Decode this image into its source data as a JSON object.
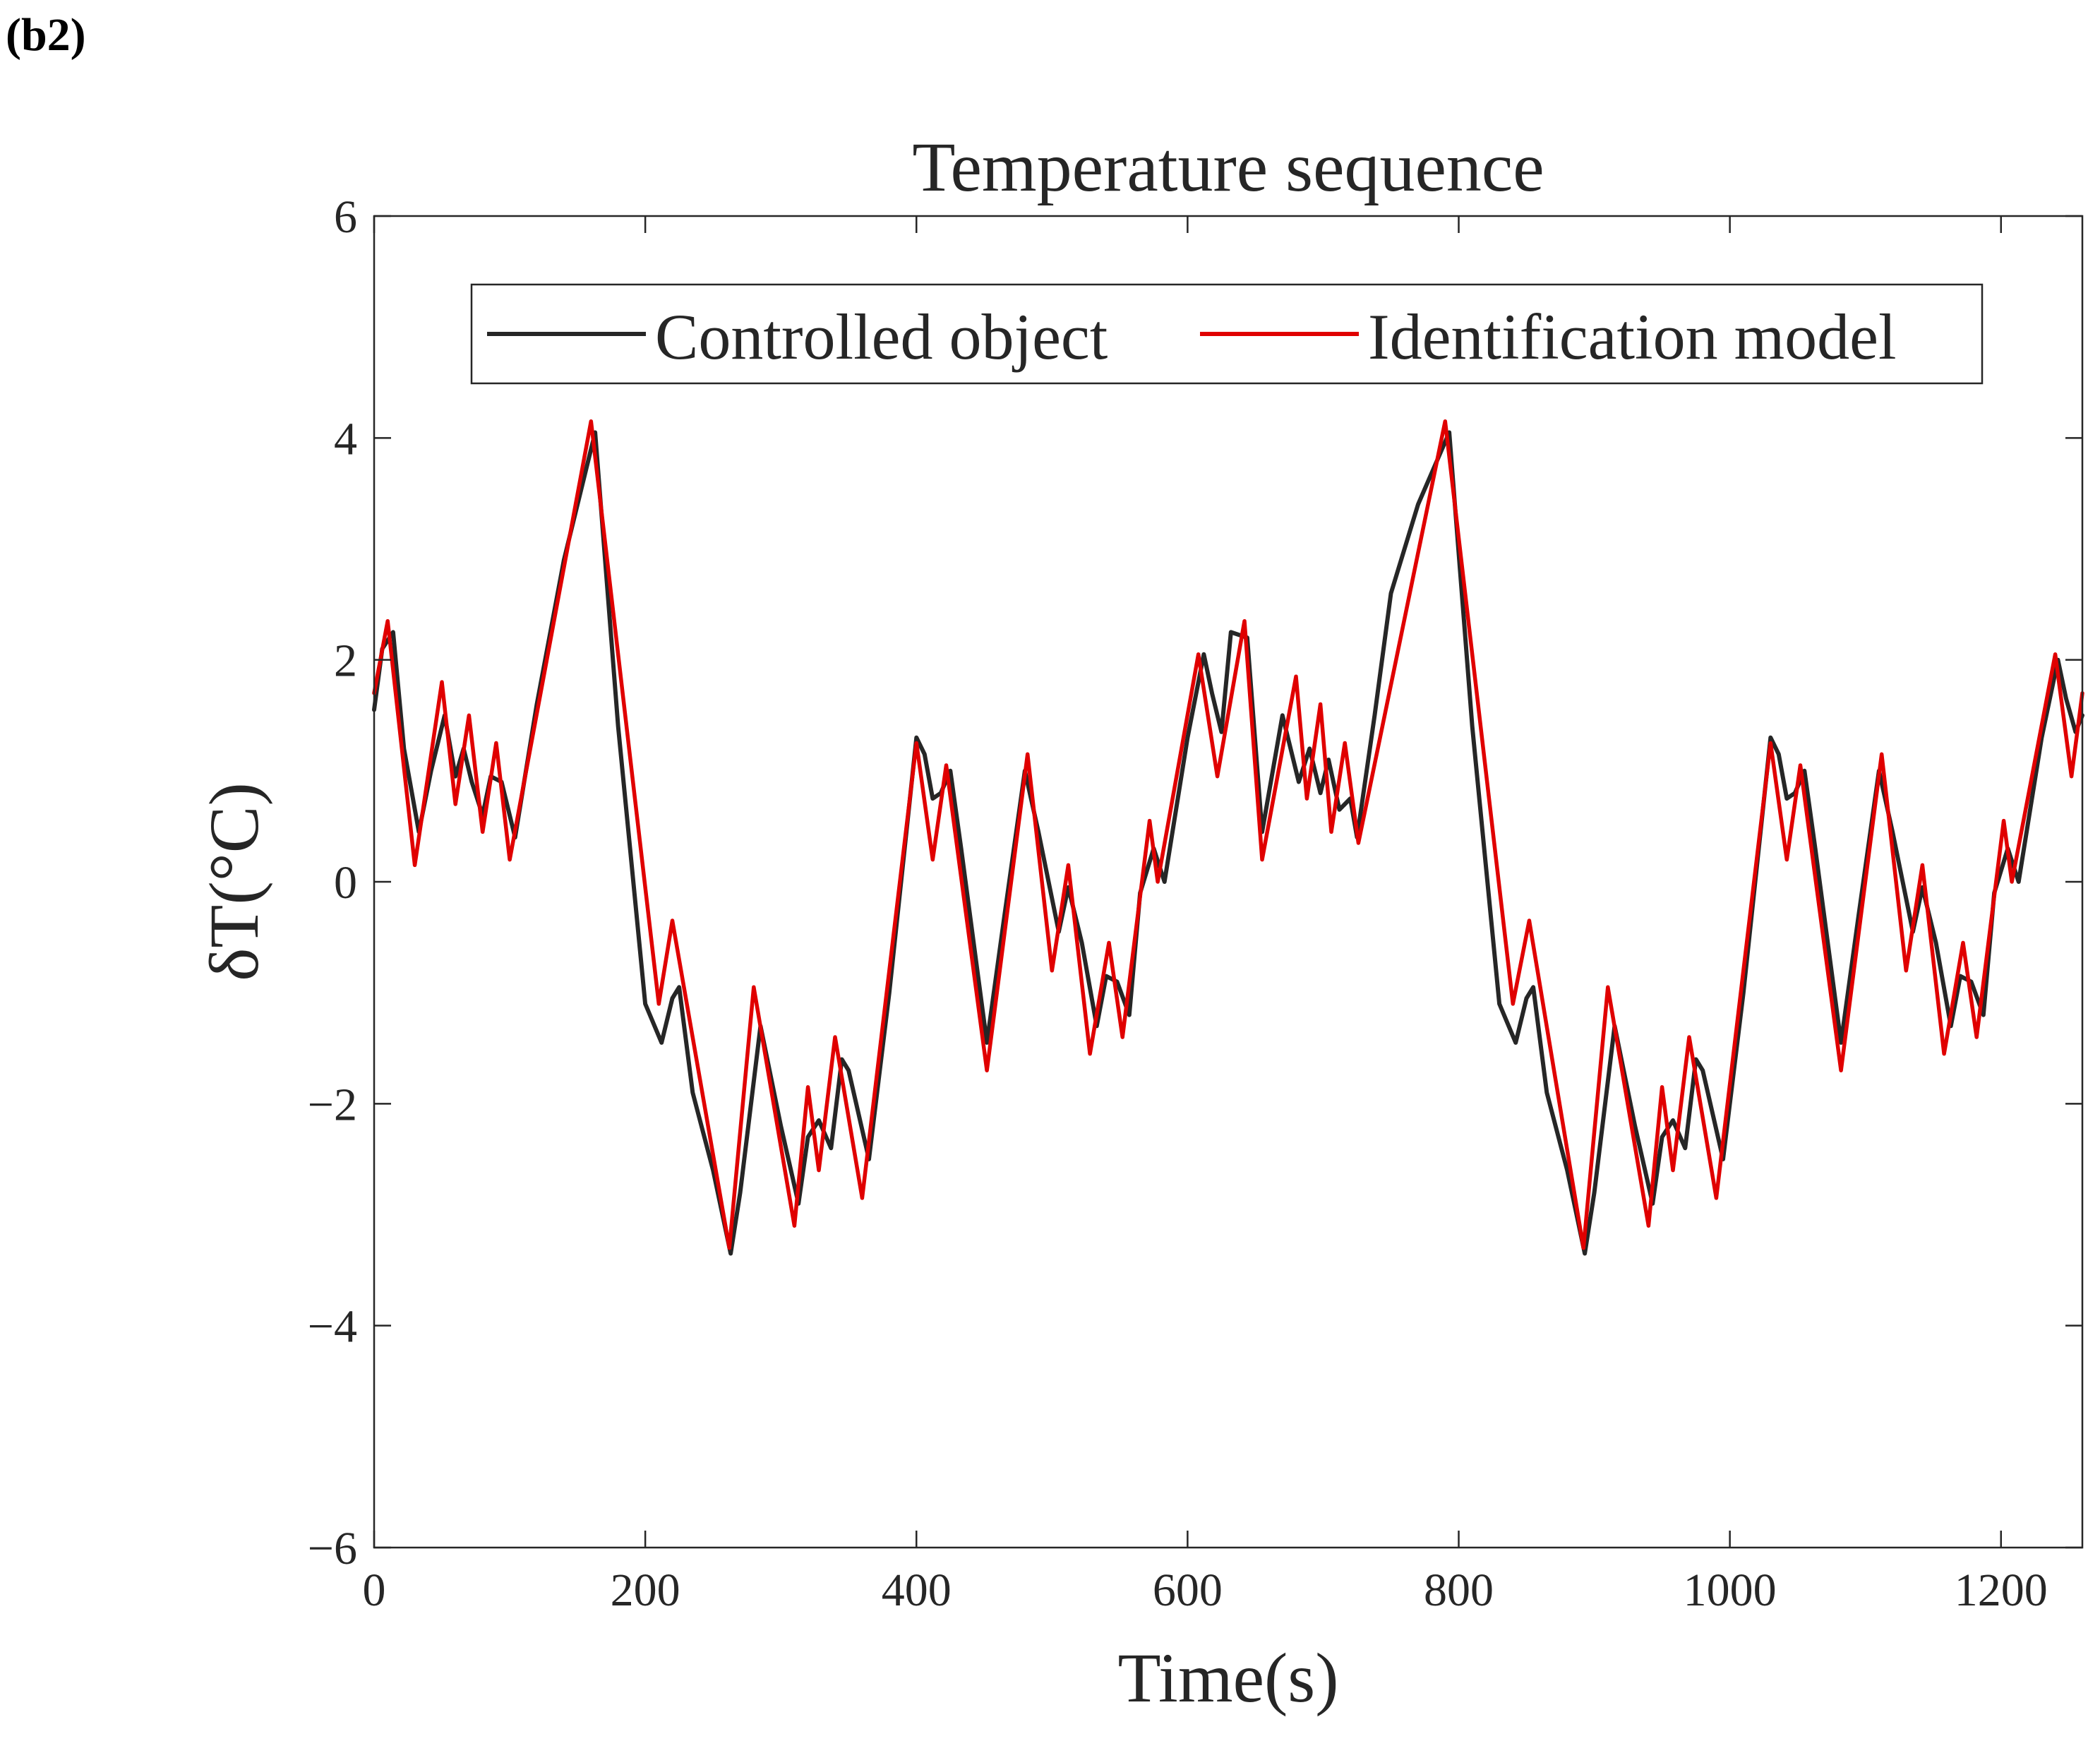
{
  "panel_label": "(b2)",
  "chart_data": {
    "type": "line",
    "title": "Temperature sequence",
    "xlabel": "Time(s)",
    "ylabel": "δT(°C)",
    "xlim": [
      0,
      1260
    ],
    "ylim": [
      -6,
      6
    ],
    "xticks": [
      0,
      200,
      400,
      600,
      800,
      1000,
      1200
    ],
    "yticks": [
      6,
      4,
      2,
      0,
      -2,
      -4,
      -6
    ],
    "ytick_labels": [
      "6",
      "4",
      "2",
      "0",
      "−2",
      "−4",
      "−6"
    ],
    "legend_position": "top",
    "series": [
      {
        "name": "Controlled object",
        "color": "#262626",
        "x": [
          0,
          6,
          14,
          22,
          33,
          42,
          52,
          60,
          66,
          72,
          80,
          86,
          94,
          104,
          120,
          140,
          163,
          180,
          200,
          212,
          220,
          225,
          235,
          250,
          263,
          270,
          285,
          300,
          313,
          320,
          328,
          337,
          345,
          350,
          365,
          380,
          400,
          406,
          412,
          418,
          425,
          433,
          452,
          465,
          480,
          490,
          505,
          512,
          522,
          533,
          540,
          548,
          557,
          565,
          575,
          583,
          600,
          612,
          618,
          625,
          632,
          644,
          655,
          670,
          682,
          690,
          698,
          704,
          712,
          720,
          725,
          738,
          750,
          770,
          793,
          810,
          830,
          842,
          850,
          855,
          865,
          880,
          893,
          900,
          915,
          930,
          943,
          950,
          958,
          967,
          975,
          980,
          995,
          1010,
          1030,
          1036,
          1042,
          1048,
          1055,
          1063,
          1082,
          1095,
          1110,
          1120,
          1135,
          1142,
          1152,
          1163,
          1170,
          1178,
          1187,
          1195,
          1205,
          1213,
          1230,
          1242,
          1248,
          1255,
          1260
        ],
        "y": [
          1.55,
          2.1,
          2.25,
          1.2,
          0.45,
          1.0,
          1.5,
          0.95,
          1.2,
          0.9,
          0.6,
          0.95,
          0.9,
          0.4,
          1.6,
          2.9,
          4.05,
          1.4,
          -1.1,
          -1.45,
          -1.05,
          -0.95,
          -1.9,
          -2.6,
          -3.35,
          -2.8,
          -1.3,
          -2.2,
          -2.9,
          -2.3,
          -2.15,
          -2.4,
          -1.6,
          -1.7,
          -2.5,
          -1.0,
          1.3,
          1.15,
          0.75,
          0.8,
          1.0,
          0.3,
          -1.45,
          -0.3,
          1.0,
          0.45,
          -0.45,
          -0.05,
          -0.55,
          -1.3,
          -0.85,
          -0.9,
          -1.2,
          -0.1,
          0.3,
          0.0,
          1.3,
          2.05,
          1.7,
          1.35,
          2.25,
          2.2,
          0.45,
          1.5,
          0.9,
          1.2,
          0.8,
          1.1,
          0.65,
          0.75,
          0.4,
          1.5,
          2.6,
          3.4,
          4.05,
          1.4,
          -1.1,
          -1.45,
          -1.05,
          -0.95,
          -1.9,
          -2.6,
          -3.35,
          -2.8,
          -1.3,
          -2.2,
          -2.9,
          -2.3,
          -2.15,
          -2.4,
          -1.6,
          -1.7,
          -2.5,
          -1.0,
          1.3,
          1.15,
          0.75,
          0.8,
          1.0,
          0.3,
          -1.45,
          -0.3,
          1.0,
          0.45,
          -0.45,
          -0.05,
          -0.55,
          -1.3,
          -0.85,
          -0.9,
          -1.2,
          -0.1,
          0.3,
          0.0,
          1.3,
          2.0,
          1.65,
          1.35,
          1.5
        ]
      },
      {
        "name": "Identification model",
        "color": "#e00000",
        "x": [
          0,
          10,
          30,
          50,
          60,
          70,
          80,
          90,
          100,
          160,
          210,
          220,
          262,
          280,
          310,
          320,
          328,
          340,
          360,
          400,
          412,
          422,
          452,
          482,
          500,
          512,
          528,
          542,
          552,
          572,
          578,
          608,
          622,
          642,
          655,
          680,
          688,
          698,
          706,
          716,
          726,
          790,
          840,
          852,
          892,
          910,
          940,
          950,
          958,
          970,
          990,
          1030,
          1042,
          1052,
          1082,
          1112,
          1130,
          1142,
          1158,
          1172,
          1182,
          1202,
          1208,
          1240,
          1252,
          1260
        ],
        "y": [
          1.7,
          2.35,
          0.15,
          1.8,
          0.7,
          1.5,
          0.45,
          1.25,
          0.2,
          4.15,
          -1.1,
          -0.35,
          -3.3,
          -0.95,
          -3.1,
          -1.85,
          -2.6,
          -1.4,
          -2.85,
          1.25,
          0.2,
          1.05,
          -1.7,
          1.15,
          -0.8,
          0.15,
          -1.55,
          -0.55,
          -1.4,
          0.55,
          0.0,
          2.05,
          0.95,
          2.35,
          0.2,
          1.85,
          0.75,
          1.6,
          0.45,
          1.25,
          0.35,
          4.15,
          -1.1,
          -0.35,
          -3.3,
          -0.95,
          -3.1,
          -1.85,
          -2.6,
          -1.4,
          -2.85,
          1.25,
          0.2,
          1.05,
          -1.7,
          1.15,
          -0.8,
          0.15,
          -1.55,
          -0.55,
          -1.4,
          0.55,
          0.0,
          2.05,
          0.95,
          1.7
        ]
      }
    ]
  }
}
